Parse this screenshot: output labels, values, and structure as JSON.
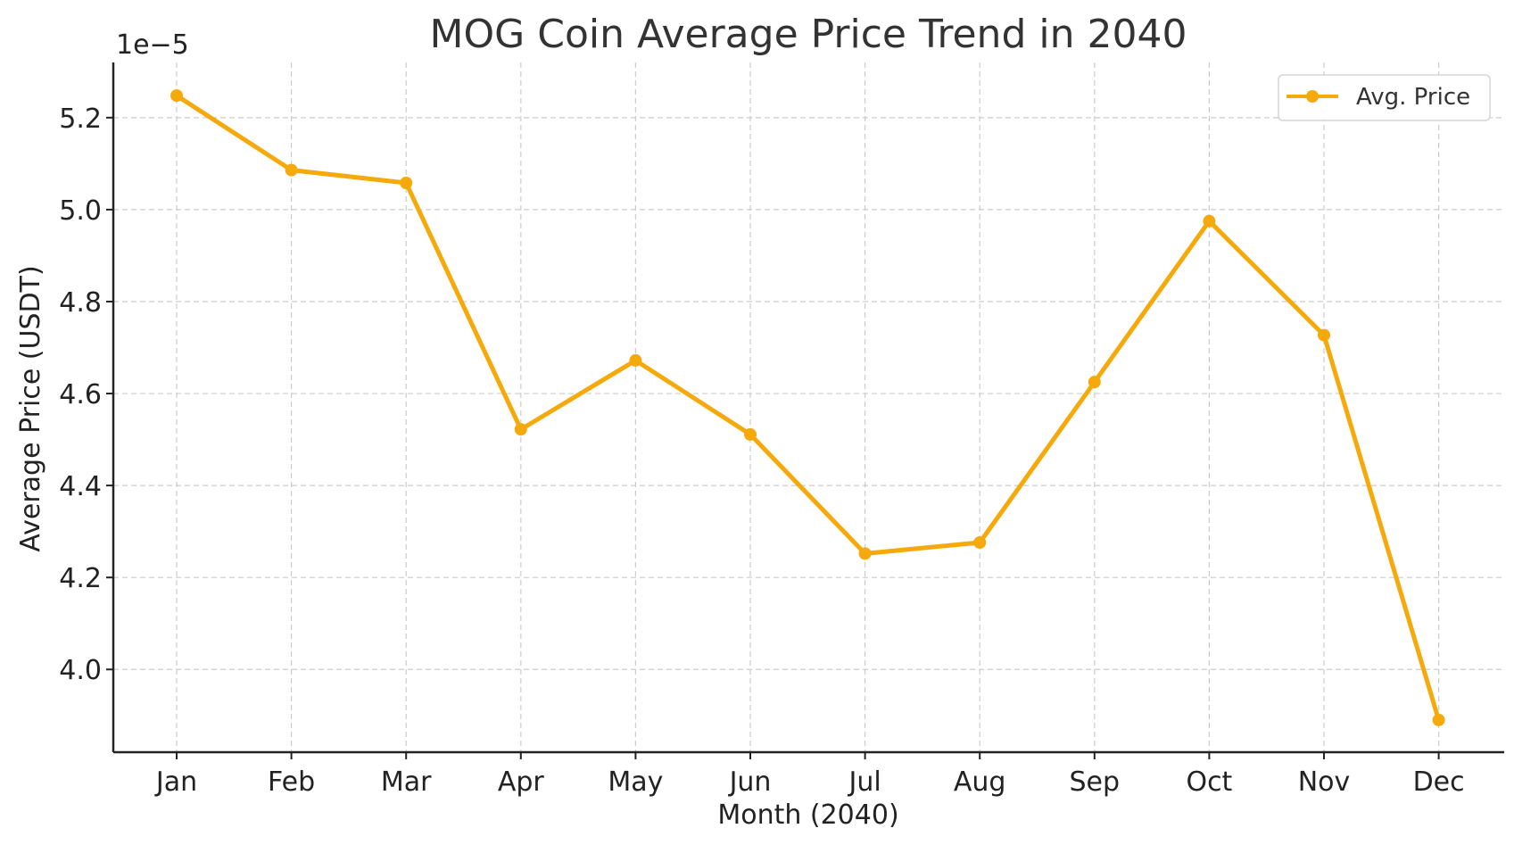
{
  "chart_data": {
    "type": "line",
    "title": "MOG Coin Average Price Trend in 2040",
    "xlabel": "Month (2040)",
    "ylabel": "Average Price (USDT)",
    "y_offset_label": "1e−5",
    "categories": [
      "Jan",
      "Feb",
      "Mar",
      "Apr",
      "May",
      "Jun",
      "Jul",
      "Aug",
      "Sep",
      "Oct",
      "Nov",
      "Dec"
    ],
    "ylim": [
      3.82,
      5.32
    ],
    "yticks": [
      4.0,
      4.2,
      4.4,
      4.6,
      4.8,
      5.0,
      5.2
    ],
    "ytick_labels": [
      "4.0",
      "4.2",
      "4.4",
      "4.6",
      "4.8",
      "5.0",
      "5.2"
    ],
    "y_scale_factor": "1e-5",
    "grid": true,
    "legend_position": "top-right",
    "series": [
      {
        "name": "Avg. Price",
        "color": "#F5A90A",
        "marker": "circle",
        "values": [
          5.248,
          5.086,
          5.058,
          4.522,
          4.672,
          4.511,
          4.252,
          4.276,
          4.625,
          4.975,
          4.727,
          3.89
        ]
      }
    ]
  }
}
